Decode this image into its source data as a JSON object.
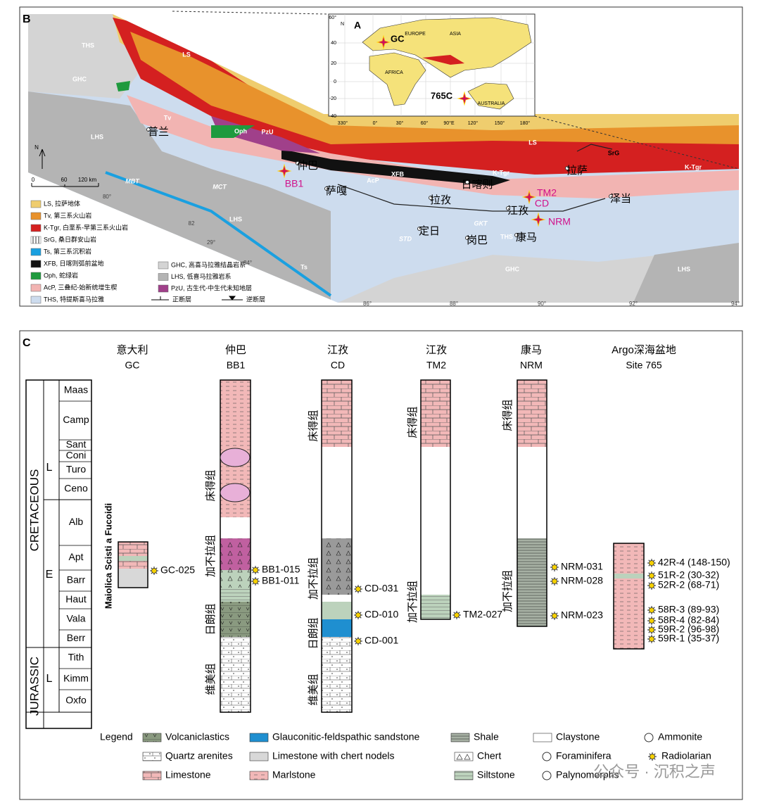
{
  "panel_labels": [
    "B",
    "A",
    "C"
  ],
  "map": {
    "units": [
      "THS",
      "GHC",
      "LS",
      "Tv",
      "LHS",
      "Oph",
      "PzU",
      "XFB",
      "AcP",
      "K-Tgr",
      "SrG",
      "LS",
      "K-Tgr",
      "MBT",
      "MCT",
      "STD",
      "GKT",
      "THS",
      "GHC",
      "LHS",
      "LHS",
      "Ts"
    ],
    "cities": [
      "普兰",
      "仲巴",
      "萨嘎",
      "拉孜",
      "日喀则",
      "江孜",
      "定日",
      "岗巴",
      "康马",
      "拉萨",
      "泽当"
    ],
    "sites": [
      "BB1",
      "TM2",
      "CD",
      "NRM"
    ],
    "coords": [
      "80°",
      "82",
      "84°",
      "86°",
      "88°",
      "90°",
      "92°",
      "94°",
      "29°"
    ],
    "scale": [
      "N",
      "0",
      "60",
      "120 km"
    ],
    "legend": [
      "LS, 拉萨地体",
      "Tv, 第三系火山岩",
      "K-Tgr, 白垩系-早第三系火山岩",
      "SrG, 桑日群安山岩",
      "Ts, 第三系沉积岩",
      "XFB, 日喀则弧前盆地",
      "Oph, 蛇绿岩",
      "AcP, 三叠纪-始新统增生楔",
      "THS, 特提斯喜马拉雅",
      "GHC, 高喜马拉雅结晶岩系",
      "LHS, 低喜马拉雅岩系",
      "PzU, 古生代-中生代未知地层",
      "正断层",
      "逆断层"
    ]
  },
  "inset": {
    "lat_ticks": [
      "60°",
      "40",
      "20",
      "0",
      "-20",
      "-40"
    ],
    "lon_ticks": [
      "330°",
      "0°",
      "30°",
      "60°",
      "90°E",
      "120°",
      "150°",
      "180°"
    ],
    "north": "N",
    "regions": [
      "EUROPE",
      "ASIA",
      "AFRICA",
      "AUSTRALIA"
    ],
    "sites": [
      "GC",
      "765C"
    ]
  },
  "columns": {
    "headers": [
      {
        "name": "意大利",
        "code": "GC"
      },
      {
        "name": "仲巴",
        "code": "BB1"
      },
      {
        "name": "江孜",
        "code": "CD"
      },
      {
        "name": "江孜",
        "code": "TM2"
      },
      {
        "name": "康马",
        "code": "NRM"
      },
      {
        "name": "Argo深海盆地",
        "code": "Site 765"
      }
    ],
    "periods": [
      "CRETACEOUS",
      "JURASSIC"
    ],
    "epochs": [
      "L",
      "E",
      "L"
    ],
    "stages": [
      "Maas",
      "Camp",
      "Sant",
      "Coni",
      "Turo",
      "Ceno",
      "Alb",
      "Apt",
      "Barr",
      "Haut",
      "Vala",
      "Berr",
      "Tith",
      "Kimm",
      "Oxfo"
    ],
    "gc_formation": "Maiolica Scisti a Fucoidi",
    "formations": [
      "床得组",
      "加不拉组",
      "日朗组",
      "维美组",
      "床得组",
      "加不拉组",
      "日朗组",
      "维美组",
      "床得组",
      "加不拉组",
      "床得组",
      "加不拉组"
    ],
    "samples": [
      "GC-025",
      "BB1-015",
      "BB1-011",
      "CD-031",
      "CD-010",
      "CD-001",
      "TM2-027",
      "NRM-031",
      "NRM-028",
      "NRM-023",
      "42R-4 (148-150)",
      "51R-2 (30-32)",
      "52R-2 (68-71)",
      "58R-3 (89-93)",
      "58R-4 (82-84)",
      "59R-2 (96-98)",
      "59R-1 (35-37)"
    ]
  },
  "legend": {
    "title": "Legend",
    "items": [
      "Volcaniclastics",
      "Glauconitic-feldspathic sandstone",
      "Shale",
      "Claystone",
      "Ammonite",
      "Quartz arenites",
      "Limestone with chert nodels",
      "Chert",
      "Foraminifera",
      "Radiolarian",
      "Limestone",
      "Marlstone",
      "Siltstone",
      "Palynomorphs"
    ]
  },
  "watermark": "公众号 · 沉积之声"
}
